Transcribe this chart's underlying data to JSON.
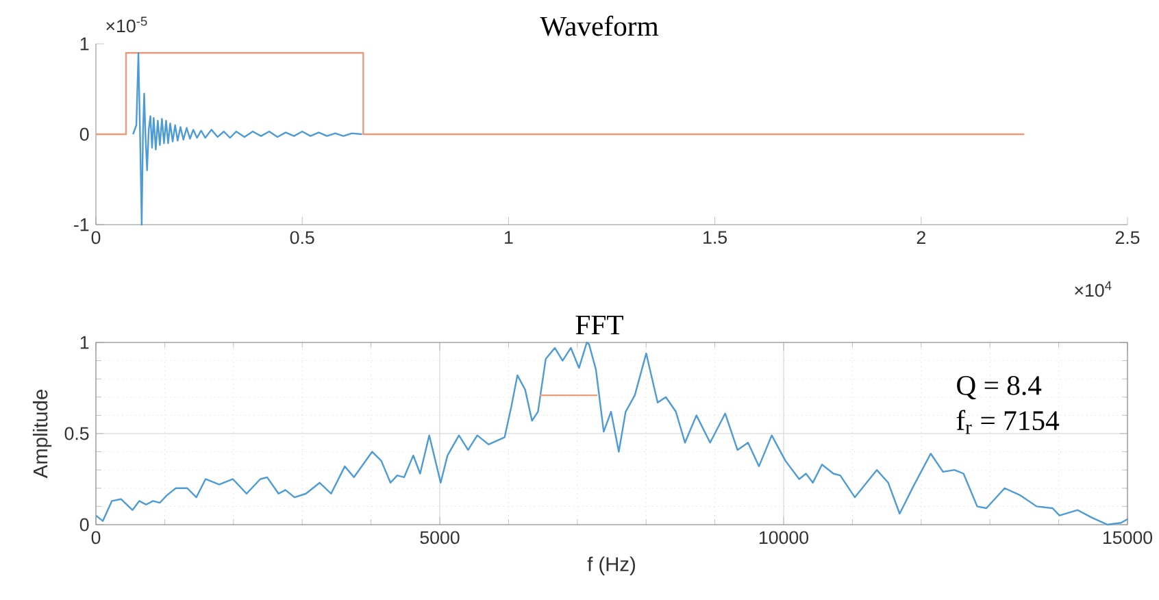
{
  "chart_data": [
    {
      "type": "line",
      "title": "Waveform",
      "annotations": [
        "×10$^{-5}$",
        "×10$^{4}$"
      ],
      "xlim": [
        0,
        2.5
      ],
      "ylim": [
        -1,
        1
      ],
      "xticks": [
        0,
        0.5,
        1,
        1.5,
        2,
        2.5
      ],
      "yticks": [
        -1,
        0,
        1
      ],
      "grid": false,
      "marker": "none",
      "line_style": "solid",
      "series": [
        {
          "color": "#ec9a7a",
          "x": [
            0,
            0.073,
            0.073,
            0.648,
            0.648,
            2.25
          ],
          "values": [
            0,
            0,
            0.9,
            0.9,
            0,
            0
          ]
        },
        {
          "color": "#4d9bd6",
          "x": [
            0.09,
            0.098,
            0.103,
            0.107,
            0.111,
            0.114,
            0.117,
            0.12,
            0.124,
            0.128,
            0.132,
            0.136,
            0.14,
            0.145,
            0.15,
            0.155,
            0.16,
            0.165,
            0.17,
            0.175,
            0.18,
            0.186,
            0.192,
            0.198,
            0.205,
            0.212,
            0.22,
            0.228,
            0.236,
            0.245,
            0.255,
            0.265,
            0.28,
            0.295,
            0.31,
            0.325,
            0.34,
            0.36,
            0.38,
            0.4,
            0.42,
            0.44,
            0.46,
            0.48,
            0.5,
            0.52,
            0.54,
            0.56,
            0.58,
            0.6,
            0.62,
            0.645
          ],
          "values": [
            0,
            0.1,
            0.9,
            0,
            -1,
            0,
            0.45,
            0,
            -0.4,
            0.05,
            0.2,
            -0.15,
            0.18,
            -0.17,
            0.15,
            -0.12,
            0.17,
            -0.1,
            0.15,
            -0.1,
            0.12,
            -0.08,
            0.1,
            -0.07,
            0.08,
            -0.06,
            0.07,
            -0.05,
            0.05,
            -0.04,
            0.04,
            -0.04,
            0.05,
            -0.03,
            0.03,
            -0.04,
            0.03,
            -0.03,
            0.03,
            -0.02,
            0.03,
            -0.03,
            0.02,
            -0.02,
            0.03,
            -0.02,
            0.02,
            -0.02,
            0.01,
            -0.02,
            0.01,
            0
          ]
        }
      ]
    },
    {
      "type": "line",
      "title": "FFT",
      "xlabel": "f (Hz)",
      "ylabel": "Amplitude",
      "annotations": [
        "Q = 8.4",
        "f$_{r}$ = 7154"
      ],
      "xlim": [
        0,
        15000
      ],
      "ylim": [
        0,
        1
      ],
      "xticks": [
        0,
        5000,
        10000,
        15000
      ],
      "yticks": [
        0,
        0.5,
        1
      ],
      "grid": true,
      "marker": "none",
      "line_style": "solid",
      "series": [
        {
          "color": "#4d9bd6",
          "x": [
            0,
            100,
            232,
            365,
            531,
            631,
            730,
            830,
            930,
            1029,
            1162,
            1328,
            1461,
            1594,
            1793,
            1992,
            2191,
            2390,
            2490,
            2656,
            2756,
            2888,
            3054,
            3254,
            3420,
            3619,
            3752,
            4017,
            4150,
            4283,
            4382,
            4482,
            4615,
            4714,
            4847,
            5013,
            5113,
            5279,
            5412,
            5545,
            5710,
            5943,
            6042,
            6129,
            6242,
            6341,
            6428,
            6541,
            6673,
            6786,
            6906,
            7025,
            7138,
            7171,
            7271,
            7384,
            7490,
            7603,
            7703,
            7836,
            8002,
            8168,
            8287,
            8433,
            8566,
            8732,
            8931,
            9150,
            9329,
            9482,
            9641,
            9827,
            10027,
            10226,
            10325,
            10425,
            10558,
            10724,
            10823,
            11036,
            11355,
            11521,
            11687,
            11886,
            12139,
            12318,
            12484,
            12616,
            12815,
            12948,
            13214,
            13446,
            13679,
            13911,
            14011,
            14276,
            14475,
            14708,
            14907,
            15000
          ],
          "values": [
            0.05,
            0.02,
            0.13,
            0.14,
            0.08,
            0.13,
            0.11,
            0.13,
            0.12,
            0.16,
            0.2,
            0.2,
            0.15,
            0.25,
            0.22,
            0.25,
            0.17,
            0.25,
            0.26,
            0.17,
            0.19,
            0.15,
            0.17,
            0.23,
            0.17,
            0.32,
            0.26,
            0.4,
            0.35,
            0.23,
            0.27,
            0.26,
            0.38,
            0.28,
            0.49,
            0.23,
            0.38,
            0.49,
            0.41,
            0.49,
            0.44,
            0.48,
            0.65,
            0.82,
            0.74,
            0.57,
            0.62,
            0.91,
            0.97,
            0.9,
            0.97,
            0.86,
            1.0,
            0.99,
            0.85,
            0.51,
            0.62,
            0.4,
            0.62,
            0.71,
            0.94,
            0.67,
            0.7,
            0.62,
            0.45,
            0.6,
            0.45,
            0.61,
            0.41,
            0.45,
            0.32,
            0.49,
            0.35,
            0.25,
            0.28,
            0.23,
            0.33,
            0.28,
            0.27,
            0.15,
            0.3,
            0.23,
            0.06,
            0.21,
            0.39,
            0.29,
            0.3,
            0.28,
            0.1,
            0.09,
            0.2,
            0.16,
            0.1,
            0.09,
            0.05,
            0.08,
            0.04,
            0.0,
            0.01,
            0.03
          ]
        },
        {
          "color": "#ec9a7a",
          "x": [
            6455,
            7290
          ],
          "values": [
            0.71,
            0.71
          ]
        }
      ]
    }
  ]
}
